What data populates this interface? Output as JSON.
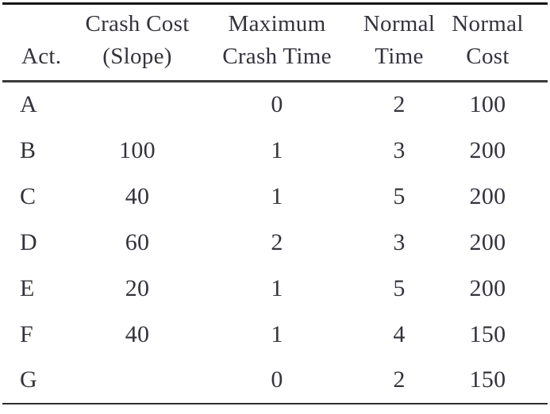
{
  "table": {
    "columns": [
      {
        "line1": "",
        "line2": "Act."
      },
      {
        "line1": "Crash Cost",
        "line2": "(Slope)"
      },
      {
        "line1": "Maximum",
        "line2": "Crash Time"
      },
      {
        "line1": "Normal",
        "line2": "Time"
      },
      {
        "line1": "Normal",
        "line2": "Cost"
      }
    ],
    "rows": [
      {
        "act": "A",
        "crash_cost_slope": "",
        "maximum_crash_time": "0",
        "normal_time": "2",
        "normal_cost": "100"
      },
      {
        "act": "B",
        "crash_cost_slope": "100",
        "maximum_crash_time": "1",
        "normal_time": "3",
        "normal_cost": "200"
      },
      {
        "act": "C",
        "crash_cost_slope": "40",
        "maximum_crash_time": "1",
        "normal_time": "5",
        "normal_cost": "200"
      },
      {
        "act": "D",
        "crash_cost_slope": "60",
        "maximum_crash_time": "2",
        "normal_time": "3",
        "normal_cost": "200"
      },
      {
        "act": "E",
        "crash_cost_slope": "20",
        "maximum_crash_time": "1",
        "normal_time": "5",
        "normal_cost": "200"
      },
      {
        "act": "F",
        "crash_cost_slope": "40",
        "maximum_crash_time": "1",
        "normal_time": "4",
        "normal_cost": "150"
      },
      {
        "act": "G",
        "crash_cost_slope": "",
        "maximum_crash_time": "0",
        "normal_time": "2",
        "normal_cost": "150"
      }
    ]
  },
  "colors": {
    "text": "#33333c",
    "rule_top": "#161616",
    "rule_header": "#3a3a3a",
    "rule_bottom": "#2d2d2d",
    "background": "#ffffff"
  }
}
